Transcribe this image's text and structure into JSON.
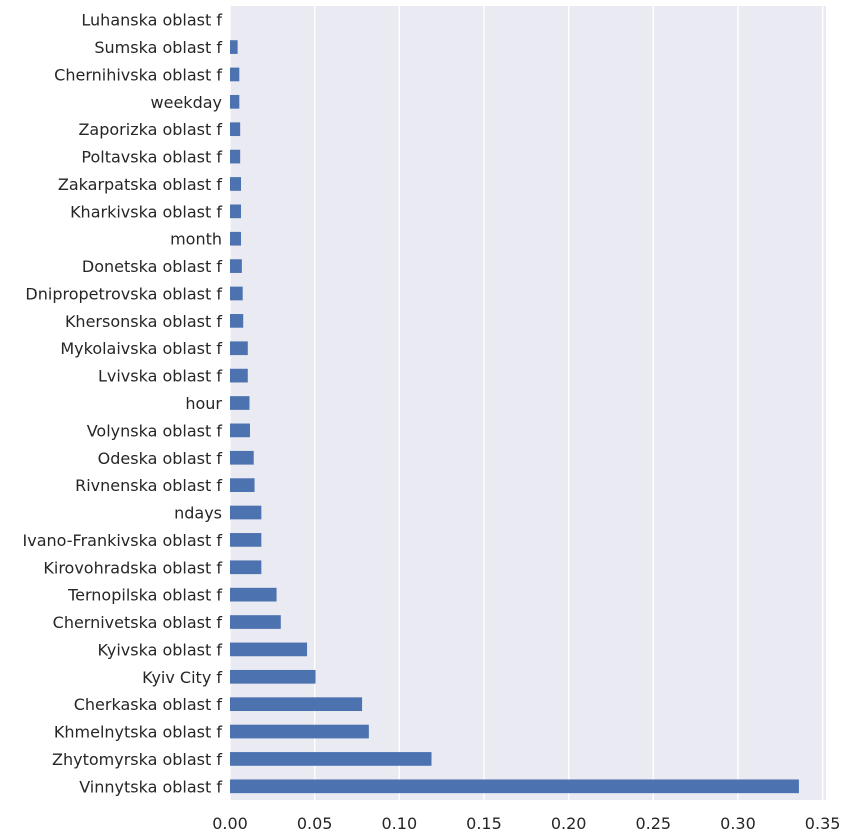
{
  "chart_data": {
    "type": "bar",
    "orientation": "horizontal",
    "title": "",
    "xlabel": "",
    "ylabel": "",
    "categories": [
      "Luhanska oblast f",
      "Sumska oblast f",
      "Chernihivska oblast f",
      "weekday",
      "Zaporizka oblast f",
      "Poltavska oblast f",
      "Zakarpatska oblast f",
      "Kharkivska oblast f",
      "month",
      "Donetska oblast f",
      "Dnipropetrovska oblast f",
      "Khersonska oblast f",
      "Mykolaivska oblast f",
      "Lvivska oblast f",
      "hour",
      "Volynska oblast f",
      "Odeska oblast f",
      "Rivnenska oblast f",
      "ndays",
      "Ivano-Frankivska oblast f",
      "Kirovohradska oblast f",
      "Ternopilska oblast f",
      "Chernivetska oblast f",
      "Kyivska oblast f",
      "Kyiv City f",
      "Cherkaska oblast f",
      "Khmelnytska oblast f",
      "Zhytomyrska oblast f",
      "Vinnytska oblast f"
    ],
    "values": [
      0.0,
      0.0045,
      0.0055,
      0.0055,
      0.006,
      0.006,
      0.0065,
      0.0065,
      0.0065,
      0.007,
      0.0075,
      0.0078,
      0.0105,
      0.0105,
      0.0115,
      0.0118,
      0.014,
      0.0145,
      0.0185,
      0.0185,
      0.0185,
      0.0275,
      0.03,
      0.0455,
      0.0505,
      0.078,
      0.082,
      0.119,
      0.336
    ],
    "xlim": [
      0.0,
      0.352
    ],
    "xticks": [
      0.0,
      0.05,
      0.1,
      0.15,
      0.2,
      0.25,
      0.3,
      0.35
    ],
    "xtick_labels": [
      "0.00",
      "0.05",
      "0.10",
      "0.15",
      "0.20",
      "0.25",
      "0.30",
      "0.35"
    ],
    "grid": true,
    "legend": "none",
    "colors": {
      "bar": "#4c72b0",
      "background": "#eaeaf2",
      "grid": "#ffffff",
      "text": "#262626"
    }
  }
}
